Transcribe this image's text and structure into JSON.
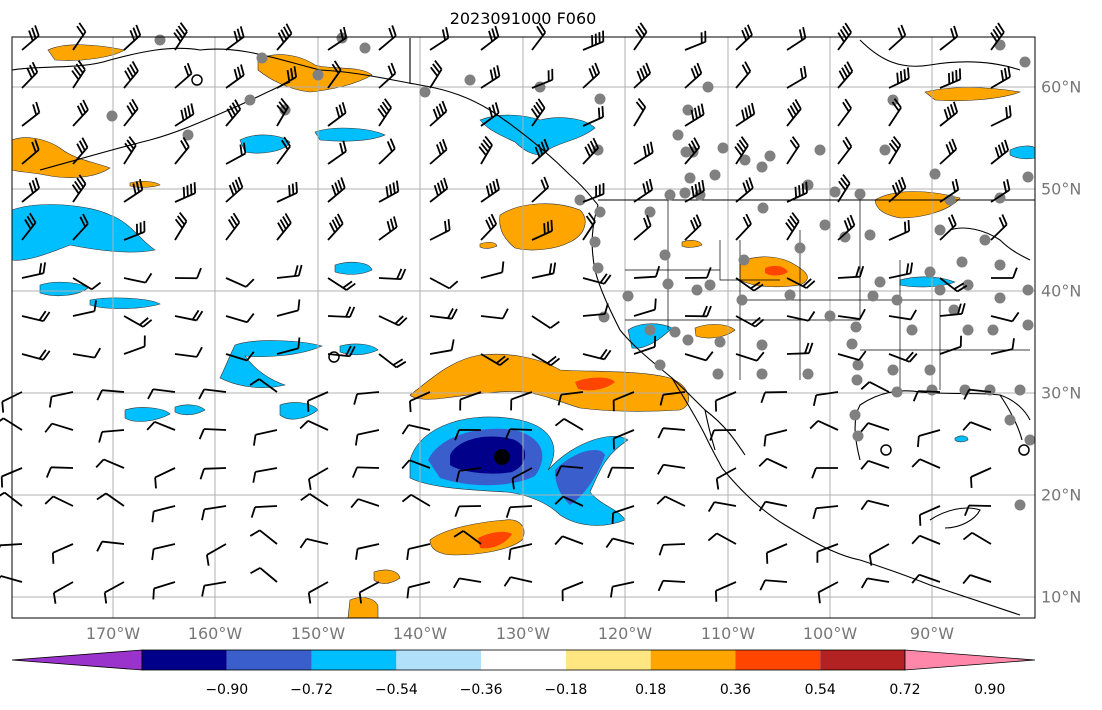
{
  "title": "2023091000 F060",
  "lon_labels": [
    "170°W",
    "160°W",
    "150°W",
    "140°W",
    "130°W",
    "120°W",
    "110°W",
    "100°W",
    "90°W"
  ],
  "lat_labels": [
    "60°N",
    "50°N",
    "40°N",
    "30°N",
    "20°N",
    "10°N"
  ],
  "colorbar": {
    "labels": [
      "−0.90",
      "−0.72",
      "−0.54",
      "−0.36",
      "−0.18",
      "0.18",
      "0.36",
      "0.54",
      "0.72",
      "0.90"
    ],
    "colors": [
      "#9933cc",
      "#00008b",
      "#3a5fcd",
      "#00bfff",
      "#b0e0fa",
      "#ffffff",
      "#ffe680",
      "#ffa500",
      "#ff4500",
      "#b22222",
      "#ff88aa"
    ],
    "extend": "both"
  },
  "colors": {
    "grid": "#b0b0b0",
    "station": "#808080",
    "coast": "#000000",
    "label": "#777777"
  }
}
